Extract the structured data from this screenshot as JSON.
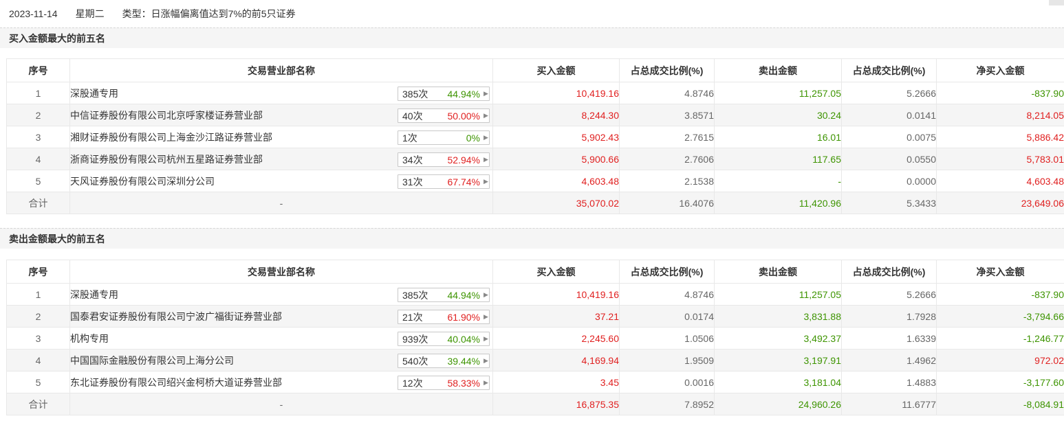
{
  "header": {
    "date": "2023-11-14",
    "weekday": "星期二",
    "type_text": "类型：日涨幅偏离值达到7%的前5只证券"
  },
  "columns": [
    "序号",
    "交易营业部名称",
    "买入金额",
    "占总成交比例(%)",
    "卖出金额",
    "占总成交比例(%)",
    "净买入金额"
  ],
  "colors": {
    "up": "#e02020",
    "down": "#3d9400"
  },
  "buy_section": {
    "title": "买入金额最大的前五名",
    "rows": [
      {
        "idx": "1",
        "name": "深股通专用",
        "count": "385次",
        "pct": "44.94%",
        "pct_color": "green",
        "buy": "10,419.16",
        "buy_pct": "4.8746",
        "sell": "11,257.05",
        "sell_pct": "5.2666",
        "net": "-837.90",
        "net_color": "green"
      },
      {
        "idx": "2",
        "name": "中信证券股份有限公司北京呼家楼证券营业部",
        "count": "40次",
        "pct": "50.00%",
        "pct_color": "red",
        "buy": "8,244.30",
        "buy_pct": "3.8571",
        "sell": "30.24",
        "sell_pct": "0.0141",
        "net": "8,214.05",
        "net_color": "red"
      },
      {
        "idx": "3",
        "name": "湘财证券股份有限公司上海金沙江路证券营业部",
        "count": "1次",
        "pct": "0%",
        "pct_color": "green",
        "buy": "5,902.43",
        "buy_pct": "2.7615",
        "sell": "16.01",
        "sell_pct": "0.0075",
        "net": "5,886.42",
        "net_color": "red"
      },
      {
        "idx": "4",
        "name": "浙商证券股份有限公司杭州五星路证券营业部",
        "count": "34次",
        "pct": "52.94%",
        "pct_color": "red",
        "buy": "5,900.66",
        "buy_pct": "2.7606",
        "sell": "117.65",
        "sell_pct": "0.0550",
        "net": "5,783.01",
        "net_color": "red"
      },
      {
        "idx": "5",
        "name": "天风证券股份有限公司深圳分公司",
        "count": "31次",
        "pct": "67.74%",
        "pct_color": "red",
        "buy": "4,603.48",
        "buy_pct": "2.1538",
        "sell": "-",
        "sell_pct": "0.0000",
        "net": "4,603.48",
        "net_color": "red"
      }
    ],
    "total": {
      "label": "合计",
      "name": "-",
      "buy": "35,070.02",
      "buy_pct": "16.4076",
      "sell": "11,420.96",
      "sell_pct": "5.3433",
      "net": "23,649.06",
      "net_color": "red"
    }
  },
  "sell_section": {
    "title": "卖出金额最大的前五名",
    "rows": [
      {
        "idx": "1",
        "name": "深股通专用",
        "count": "385次",
        "pct": "44.94%",
        "pct_color": "green",
        "buy": "10,419.16",
        "buy_pct": "4.8746",
        "sell": "11,257.05",
        "sell_pct": "5.2666",
        "net": "-837.90",
        "net_color": "green"
      },
      {
        "idx": "2",
        "name": "国泰君安证券股份有限公司宁波广福街证券营业部",
        "count": "21次",
        "pct": "61.90%",
        "pct_color": "red",
        "buy": "37.21",
        "buy_pct": "0.0174",
        "sell": "3,831.88",
        "sell_pct": "1.7928",
        "net": "-3,794.66",
        "net_color": "green"
      },
      {
        "idx": "3",
        "name": "机构专用",
        "count": "939次",
        "pct": "40.04%",
        "pct_color": "green",
        "buy": "2,245.60",
        "buy_pct": "1.0506",
        "sell": "3,492.37",
        "sell_pct": "1.6339",
        "net": "-1,246.77",
        "net_color": "green"
      },
      {
        "idx": "4",
        "name": "中国国际金融股份有限公司上海分公司",
        "count": "540次",
        "pct": "39.44%",
        "pct_color": "green",
        "buy": "4,169.94",
        "buy_pct": "1.9509",
        "sell": "3,197.91",
        "sell_pct": "1.4962",
        "net": "972.02",
        "net_color": "red"
      },
      {
        "idx": "5",
        "name": "东北证券股份有限公司绍兴金柯桥大道证券营业部",
        "count": "12次",
        "pct": "58.33%",
        "pct_color": "red",
        "buy": "3.45",
        "buy_pct": "0.0016",
        "sell": "3,181.04",
        "sell_pct": "1.4883",
        "net": "-3,177.60",
        "net_color": "green"
      }
    ],
    "total": {
      "label": "合计",
      "name": "-",
      "buy": "16,875.35",
      "buy_pct": "7.8952",
      "sell": "24,960.26",
      "sell_pct": "11.6777",
      "net": "-8,084.91",
      "net_color": "green"
    }
  }
}
